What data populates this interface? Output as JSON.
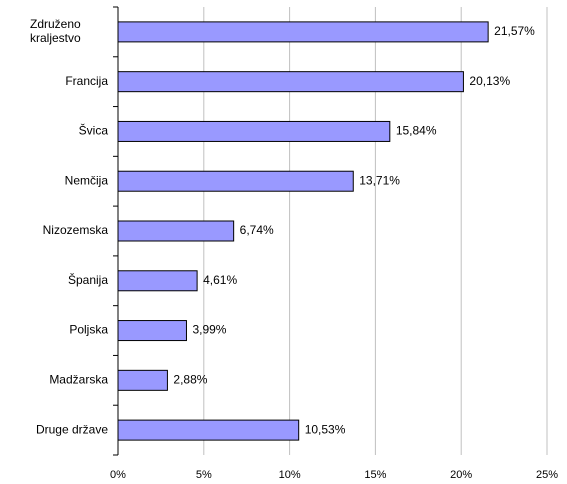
{
  "chart_data": {
    "type": "barh",
    "categories": [
      "Združeno kraljestvo",
      "Francija",
      "Švica",
      "Nemčija",
      "Nizozemska",
      "Španija",
      "Poljska",
      "Madžarska",
      "Druge države"
    ],
    "values": [
      21.57,
      20.13,
      15.84,
      13.71,
      6.74,
      4.61,
      3.99,
      2.88,
      10.53
    ],
    "value_labels": [
      "21,57%",
      "20,13%",
      "15,84%",
      "13,71%",
      "6,74%",
      "4,61%",
      "3,99%",
      "2,88%",
      "10,53%"
    ],
    "color": "#9999ff",
    "xlim": [
      0,
      25
    ],
    "xticks": [
      {
        "value": 0,
        "label": "0%"
      },
      {
        "value": 5,
        "label": "5%"
      },
      {
        "value": 10,
        "label": "10%"
      },
      {
        "value": 15,
        "label": "15%"
      },
      {
        "value": 20,
        "label": "20%"
      },
      {
        "value": 25,
        "label": "25%"
      }
    ],
    "grid": true
  }
}
